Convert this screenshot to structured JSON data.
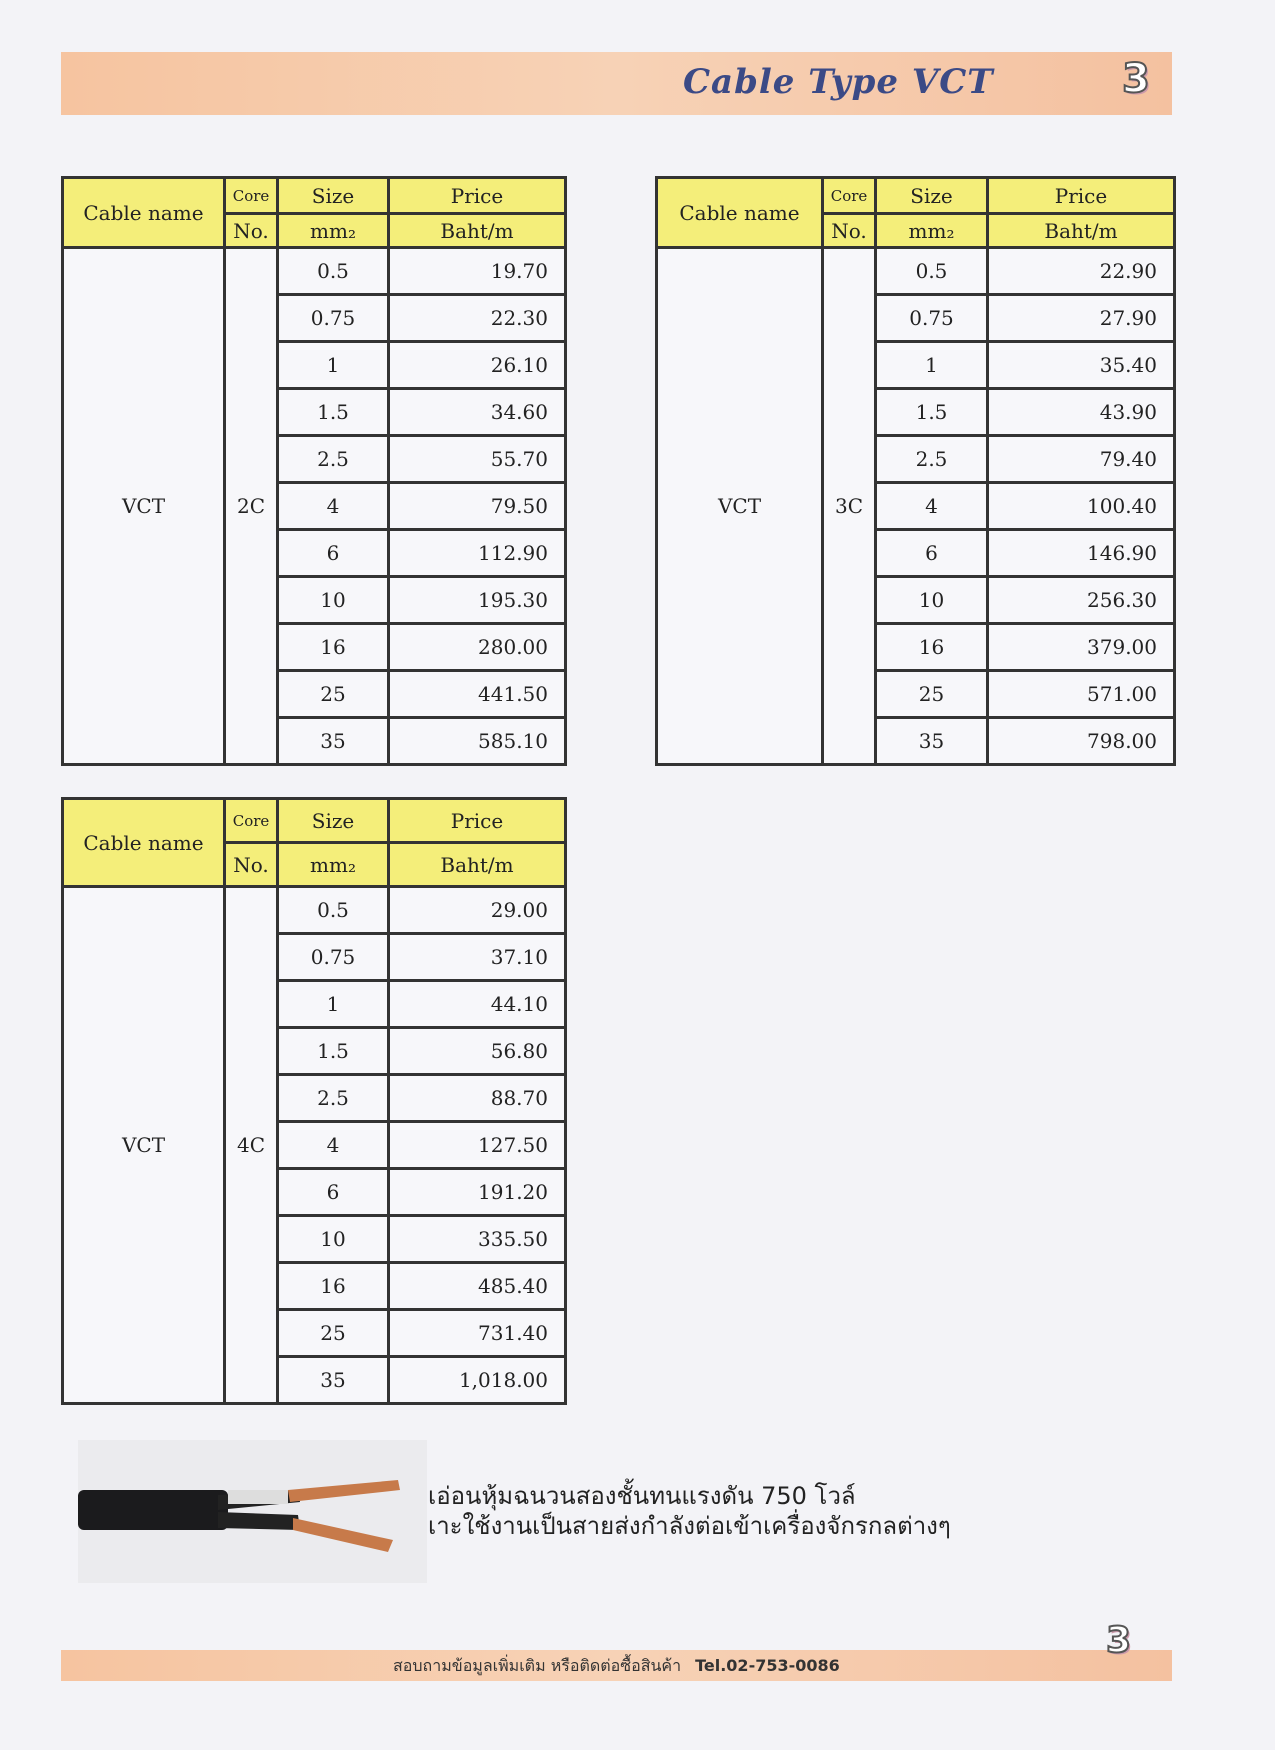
{
  "header": {
    "title": "Cable Type VCT",
    "page_number": "3"
  },
  "table_headers": {
    "cable_name": "Cable name",
    "core": "Core",
    "no": "No.",
    "size": "Size",
    "size_unit": "mm₂",
    "price": "Price",
    "price_unit": "Baht/m"
  },
  "tables": [
    {
      "cable_name": "VCT",
      "core": "2C",
      "rows": [
        [
          "0.5",
          "19.70"
        ],
        [
          "0.75",
          "22.30"
        ],
        [
          "1",
          "26.10"
        ],
        [
          "1.5",
          "34.60"
        ],
        [
          "2.5",
          "55.70"
        ],
        [
          "4",
          "79.50"
        ],
        [
          "6",
          "112.90"
        ],
        [
          "10",
          "195.30"
        ],
        [
          "16",
          "280.00"
        ],
        [
          "25",
          "441.50"
        ],
        [
          "35",
          "585.10"
        ]
      ]
    },
    {
      "cable_name": "VCT",
      "core": "3C",
      "rows": [
        [
          "0.5",
          "22.90"
        ],
        [
          "0.75",
          "27.90"
        ],
        [
          "1",
          "35.40"
        ],
        [
          "1.5",
          "43.90"
        ],
        [
          "2.5",
          "79.40"
        ],
        [
          "4",
          "100.40"
        ],
        [
          "6",
          "146.90"
        ],
        [
          "10",
          "256.30"
        ],
        [
          "16",
          "379.00"
        ],
        [
          "25",
          "571.00"
        ],
        [
          "35",
          "798.00"
        ]
      ]
    },
    {
      "cable_name": "VCT",
      "core": "4C",
      "rows": [
        [
          "0.5",
          "29.00"
        ],
        [
          "0.75",
          "37.10"
        ],
        [
          "1",
          "44.10"
        ],
        [
          "1.5",
          "56.80"
        ],
        [
          "2.5",
          "88.70"
        ],
        [
          "4",
          "127.50"
        ],
        [
          "6",
          "191.20"
        ],
        [
          "10",
          "335.50"
        ],
        [
          "16",
          "485.40"
        ],
        [
          "25",
          "731.40"
        ],
        [
          "35",
          "1,018.00"
        ]
      ]
    }
  ],
  "description": {
    "line1": "เอ่อนหุ้มฉนวนสองชั้นทนแรงดัน 750 โวล์",
    "line2": "เาะใช้งานเป็นสายส่งกำลังต่อเข้าเครื่องจักรกลต่างๆ"
  },
  "footer": {
    "text": "สอบถามข้อมูลเพิ่มเติม   หรือติดต่อซื้อสินค้า",
    "tel": "Tel.02-753-0086",
    "page_number": "3"
  }
}
